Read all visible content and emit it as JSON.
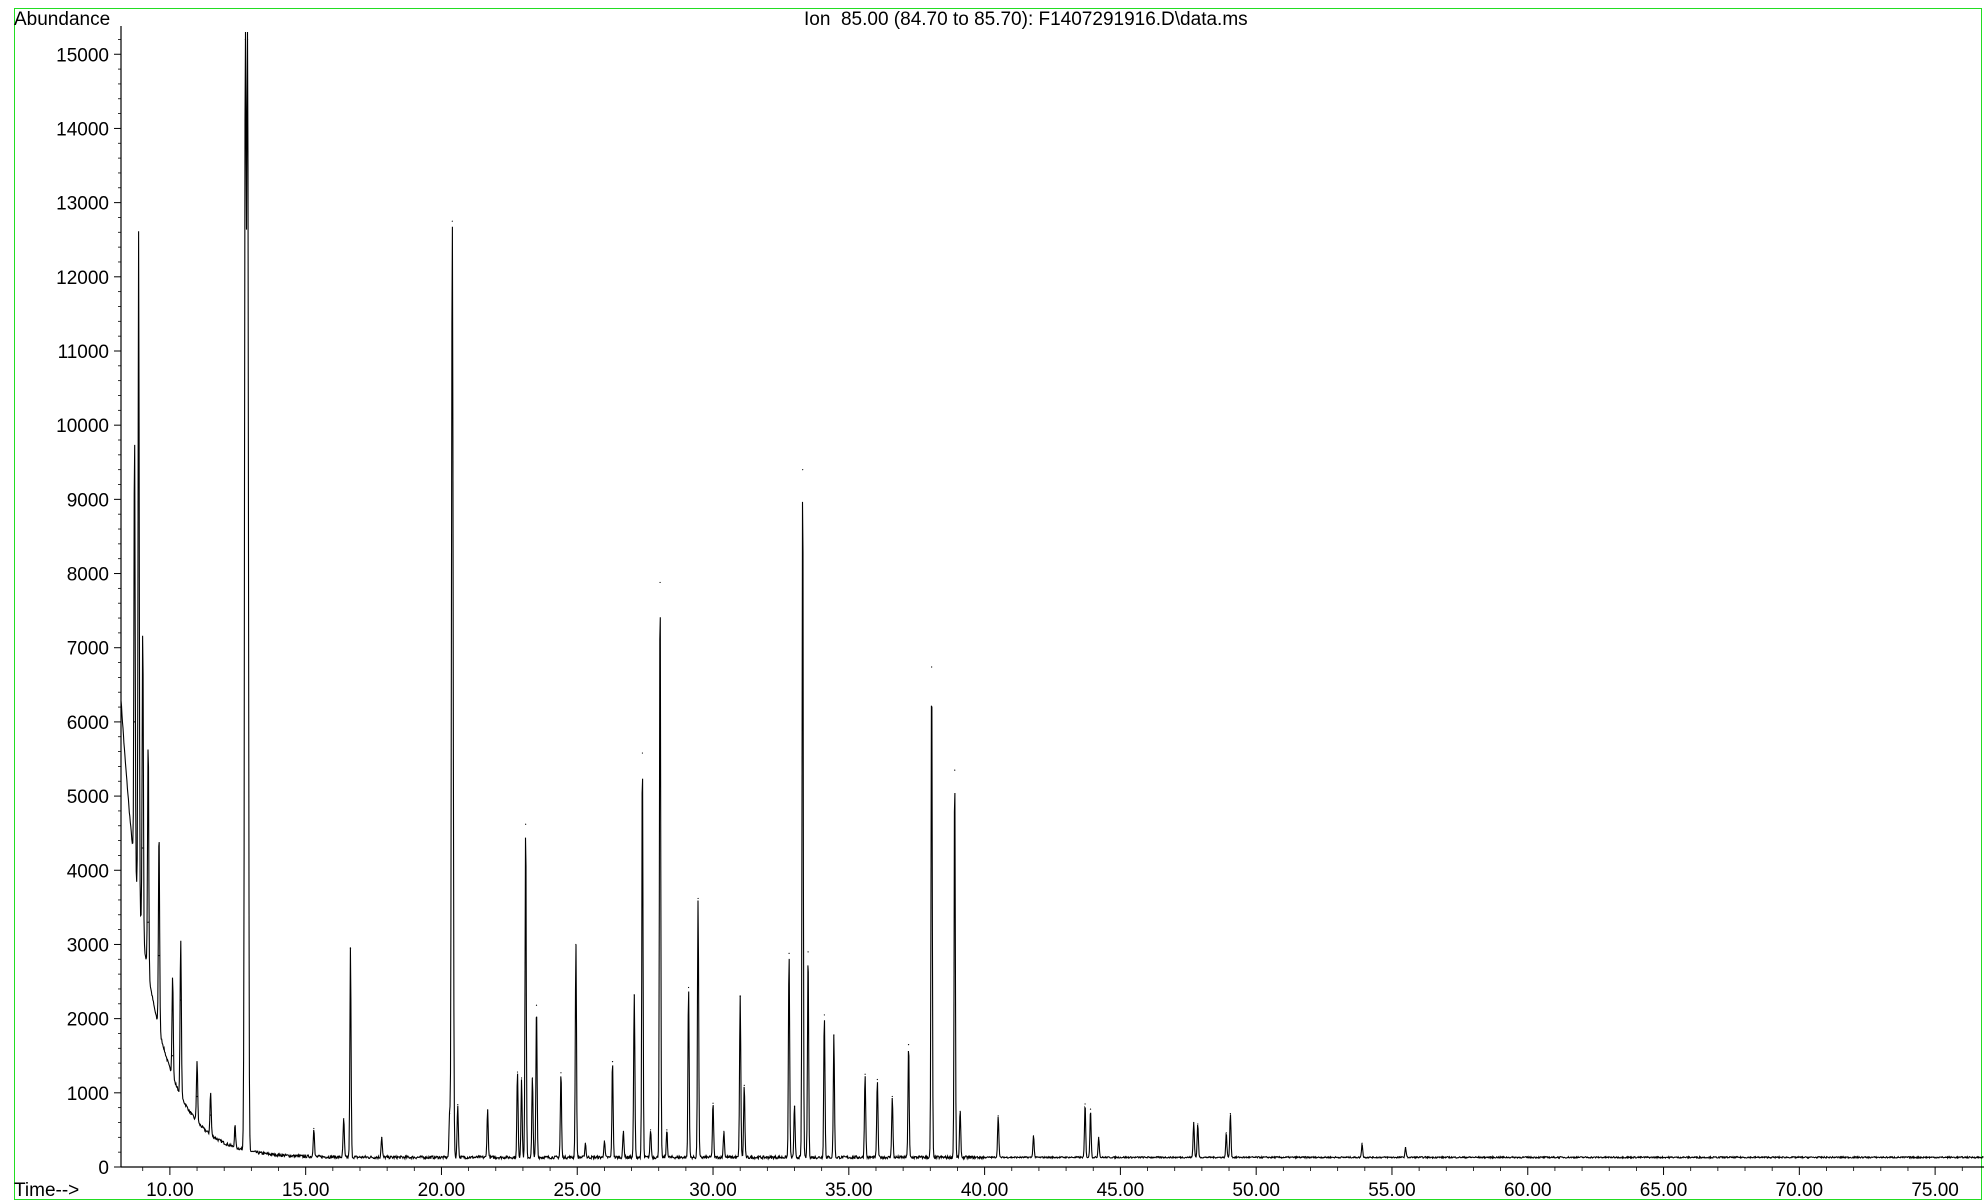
{
  "chart_data": {
    "type": "line",
    "title": "Ion  85.00 (84.70 to 85.70): F1407291916.D\\data.ms",
    "ylabel": "Abundance",
    "xlabel": "Time-->",
    "xlim": [
      8.2,
      76.8
    ],
    "ylim": [
      0,
      15300
    ],
    "x_ticks": [
      10,
      15,
      20,
      25,
      30,
      35,
      40,
      45,
      50,
      55,
      60,
      65,
      70,
      75
    ],
    "x_tick_labels": [
      "10.00",
      "15.00",
      "20.00",
      "25.00",
      "30.00",
      "35.00",
      "40.00",
      "45.00",
      "50.00",
      "55.00",
      "60.00",
      "65.00",
      "70.00",
      "75.00"
    ],
    "y_ticks": [
      0,
      1000,
      2000,
      3000,
      4000,
      5000,
      6000,
      7000,
      8000,
      9000,
      10000,
      11000,
      12000,
      13000,
      14000,
      15000
    ],
    "y_tick_labels": [
      "0",
      "1000",
      "2000",
      "3000",
      "4000",
      "5000",
      "6000",
      "7000",
      "8000",
      "9000",
      "10000",
      "11000",
      "12000",
      "13000",
      "14000",
      "15000"
    ],
    "baseline": {
      "start_value": 6300,
      "decay_minutes": 1.1,
      "floor": 130
    },
    "peaks": [
      {
        "rt": 8.7,
        "abundance": 6000
      },
      {
        "rt": 8.85,
        "abundance": 9200
      },
      {
        "rt": 9.0,
        "abundance": 4300
      },
      {
        "rt": 9.2,
        "abundance": 3300
      },
      {
        "rt": 9.6,
        "abundance": 2850
      },
      {
        "rt": 10.1,
        "abundance": 1500
      },
      {
        "rt": 10.4,
        "abundance": 2250
      },
      {
        "rt": 11.0,
        "abundance": 950
      },
      {
        "rt": 11.5,
        "abundance": 700
      },
      {
        "rt": 12.4,
        "abundance": 420
      },
      {
        "rt": 12.78,
        "abundance": 15200
      },
      {
        "rt": 12.86,
        "abundance": 15200
      },
      {
        "rt": 15.3,
        "abundance": 520
      },
      {
        "rt": 16.4,
        "abundance": 650
      },
      {
        "rt": 16.65,
        "abundance": 2950
      },
      {
        "rt": 17.8,
        "abundance": 400
      },
      {
        "rt": 20.3,
        "abundance": 720
      },
      {
        "rt": 20.4,
        "abundance": 12750
      },
      {
        "rt": 20.6,
        "abundance": 840
      },
      {
        "rt": 21.7,
        "abundance": 770
      },
      {
        "rt": 22.8,
        "abundance": 1280
      },
      {
        "rt": 22.95,
        "abundance": 1200
      },
      {
        "rt": 23.1,
        "abundance": 4620
      },
      {
        "rt": 23.35,
        "abundance": 1200
      },
      {
        "rt": 23.5,
        "abundance": 2180
      },
      {
        "rt": 24.4,
        "abundance": 1270
      },
      {
        "rt": 24.95,
        "abundance": 3000
      },
      {
        "rt": 25.3,
        "abundance": 320
      },
      {
        "rt": 26.0,
        "abundance": 350
      },
      {
        "rt": 26.3,
        "abundance": 1420
      },
      {
        "rt": 26.7,
        "abundance": 480
      },
      {
        "rt": 27.1,
        "abundance": 2320
      },
      {
        "rt": 27.4,
        "abundance": 5580
      },
      {
        "rt": 27.7,
        "abundance": 500
      },
      {
        "rt": 28.05,
        "abundance": 7880
      },
      {
        "rt": 28.3,
        "abundance": 500
      },
      {
        "rt": 29.1,
        "abundance": 2420
      },
      {
        "rt": 29.45,
        "abundance": 3620
      },
      {
        "rt": 30.0,
        "abundance": 860
      },
      {
        "rt": 30.4,
        "abundance": 480
      },
      {
        "rt": 31.0,
        "abundance": 2300
      },
      {
        "rt": 31.15,
        "abundance": 1100
      },
      {
        "rt": 32.8,
        "abundance": 2880
      },
      {
        "rt": 33.0,
        "abundance": 820
      },
      {
        "rt": 33.3,
        "abundance": 9400
      },
      {
        "rt": 33.5,
        "abundance": 2900
      },
      {
        "rt": 34.1,
        "abundance": 2050
      },
      {
        "rt": 34.45,
        "abundance": 1780
      },
      {
        "rt": 35.6,
        "abundance": 1250
      },
      {
        "rt": 36.05,
        "abundance": 1180
      },
      {
        "rt": 36.6,
        "abundance": 950
      },
      {
        "rt": 37.2,
        "abundance": 1650
      },
      {
        "rt": 38.05,
        "abundance": 6740
      },
      {
        "rt": 38.9,
        "abundance": 5350
      },
      {
        "rt": 39.1,
        "abundance": 750
      },
      {
        "rt": 40.5,
        "abundance": 690
      },
      {
        "rt": 41.8,
        "abundance": 420
      },
      {
        "rt": 43.7,
        "abundance": 850
      },
      {
        "rt": 43.9,
        "abundance": 780
      },
      {
        "rt": 44.2,
        "abundance": 400
      },
      {
        "rt": 47.7,
        "abundance": 600
      },
      {
        "rt": 47.85,
        "abundance": 580
      },
      {
        "rt": 48.9,
        "abundance": 460
      },
      {
        "rt": 49.05,
        "abundance": 720
      },
      {
        "rt": 53.9,
        "abundance": 320
      },
      {
        "rt": 55.5,
        "abundance": 260
      }
    ]
  }
}
